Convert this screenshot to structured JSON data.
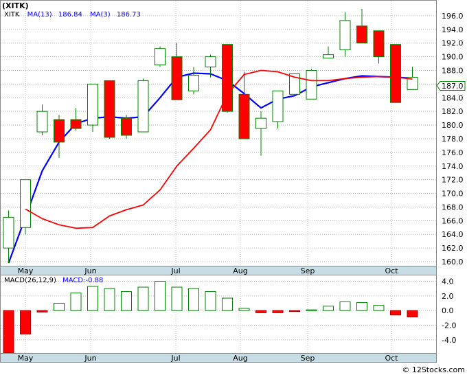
{
  "symbol_label": "(XITK)",
  "legend": {
    "symbol": "XITK",
    "ma13_label": "MA(13)",
    "ma13_value": "186.84",
    "ma3_label": "MA(3)",
    "ma3_value": "186.73",
    "macd_params": "MACD(26,12,9)",
    "macd_value_label": "MACD:-0.88"
  },
  "last_price_label": "187.0",
  "watermark": "© 12Stocks.com",
  "colors": {
    "up_candle": "#ffffff",
    "down_candle": "#ff0000",
    "candle_outline": "#008000",
    "ma13": "#0000ff",
    "ma3": "#ff0000",
    "date_bar": "#c7dde6",
    "label_blue": "#0000ff"
  },
  "chart_data": [
    {
      "type": "candlestick",
      "title": "(XITK)",
      "x_tick_labels": [
        "May",
        "Jun",
        "Jul",
        "Aug",
        "Sep",
        "Oct"
      ],
      "y_tick_labels": [
        "160.0",
        "162.0",
        "164.0",
        "166.0",
        "168.0",
        "170.0",
        "172.0",
        "174.0",
        "176.0",
        "178.0",
        "180.0",
        "182.0",
        "184.0",
        "186.0",
        "188.0",
        "190.0",
        "192.0",
        "194.0",
        "196.0"
      ],
      "ylim": [
        159.5,
        197.5
      ],
      "grid": true,
      "candles": [
        {
          "open": 162.0,
          "high": 167.5,
          "low": 159.8,
          "close": 166.5
        },
        {
          "open": 165.0,
          "high": 172.0,
          "low": 164.0,
          "close": 172.0
        },
        {
          "open": 179.0,
          "high": 183.0,
          "low": 178.5,
          "close": 182.0
        },
        {
          "open": 180.8,
          "high": 181.5,
          "low": 175.2,
          "close": 177.5
        },
        {
          "open": 180.8,
          "high": 182.5,
          "low": 179.2,
          "close": 179.5
        },
        {
          "open": 180.0,
          "high": 186.0,
          "low": 179.0,
          "close": 186.0
        },
        {
          "open": 186.5,
          "high": 186.5,
          "low": 178.0,
          "close": 178.2
        },
        {
          "open": 181.0,
          "high": 181.5,
          "low": 178.0,
          "close": 178.5
        },
        {
          "open": 179.0,
          "high": 186.8,
          "low": 179.0,
          "close": 186.5
        },
        {
          "open": 188.8,
          "high": 191.5,
          "low": 188.5,
          "close": 191.2
        },
        {
          "open": 190.0,
          "high": 192.0,
          "low": 183.7,
          "close": 183.7
        },
        {
          "open": 185.0,
          "high": 188.5,
          "low": 184.5,
          "close": 187.3
        },
        {
          "open": 188.5,
          "high": 190.3,
          "low": 187.0,
          "close": 190.0
        },
        {
          "open": 191.8,
          "high": 191.8,
          "low": 181.8,
          "close": 182.0
        },
        {
          "open": 184.5,
          "high": 187.8,
          "low": 178.0,
          "close": 178.0
        },
        {
          "open": 179.5,
          "high": 182.0,
          "low": 175.5,
          "close": 181.0
        },
        {
          "open": 180.5,
          "high": 185.0,
          "low": 179.5,
          "close": 185.0
        },
        {
          "open": 184.5,
          "high": 187.5,
          "low": 184.5,
          "close": 187.5
        },
        {
          "open": 183.8,
          "high": 188.2,
          "low": 183.8,
          "close": 188.0
        },
        {
          "open": 189.8,
          "high": 191.5,
          "low": 189.8,
          "close": 190.3
        },
        {
          "open": 191.0,
          "high": 196.5,
          "low": 190.0,
          "close": 195.3
        },
        {
          "open": 194.5,
          "high": 197.0,
          "low": 192.0,
          "close": 192.0
        },
        {
          "open": 193.8,
          "high": 193.8,
          "low": 189.0,
          "close": 190.0
        },
        {
          "open": 191.8,
          "high": 191.8,
          "low": 183.3,
          "close": 183.3
        },
        {
          "open": 185.2,
          "high": 188.5,
          "low": 185.2,
          "close": 187.0
        }
      ],
      "series": [
        {
          "name": "MA(13)",
          "values": [
            159.8,
            166.5,
            173.3,
            177.5,
            180.2,
            181.0,
            181.2,
            181.0,
            181.2,
            184.0,
            187.0,
            187.6,
            187.5,
            186.5,
            184.6,
            182.5,
            183.8,
            184.3,
            185.6,
            186.2,
            186.8,
            187.2,
            187.1,
            187.0,
            186.84
          ]
        },
        {
          "name": "MA(3)",
          "values": [
            null,
            167.7,
            166.3,
            165.4,
            164.9,
            165.0,
            166.7,
            167.6,
            168.3,
            170.5,
            174.0,
            176.6,
            179.3,
            184.5,
            187.4,
            188.0,
            187.8,
            187.0,
            186.5,
            186.5,
            186.8,
            187.0,
            187.1,
            187.0,
            186.73
          ]
        }
      ]
    },
    {
      "type": "bar",
      "title": "MACD(26,12,9)",
      "x_tick_labels": [
        "May",
        "Jun",
        "Jul",
        "Aug",
        "Sep",
        "Oct"
      ],
      "y_tick_labels": [
        "4.0",
        "2.0",
        "0.0",
        "-2.0",
        "-4.0"
      ],
      "ylim": [
        -5.8,
        4.8
      ],
      "grid": true,
      "values": [
        -5.8,
        -3.2,
        -0.2,
        1.0,
        2.4,
        3.3,
        3.0,
        2.6,
        3.2,
        4.0,
        3.2,
        3.0,
        2.6,
        1.7,
        0.3,
        -0.3,
        -0.3,
        -0.1,
        0.1,
        0.6,
        1.2,
        1.1,
        0.7,
        -0.6,
        -0.88
      ]
    }
  ]
}
